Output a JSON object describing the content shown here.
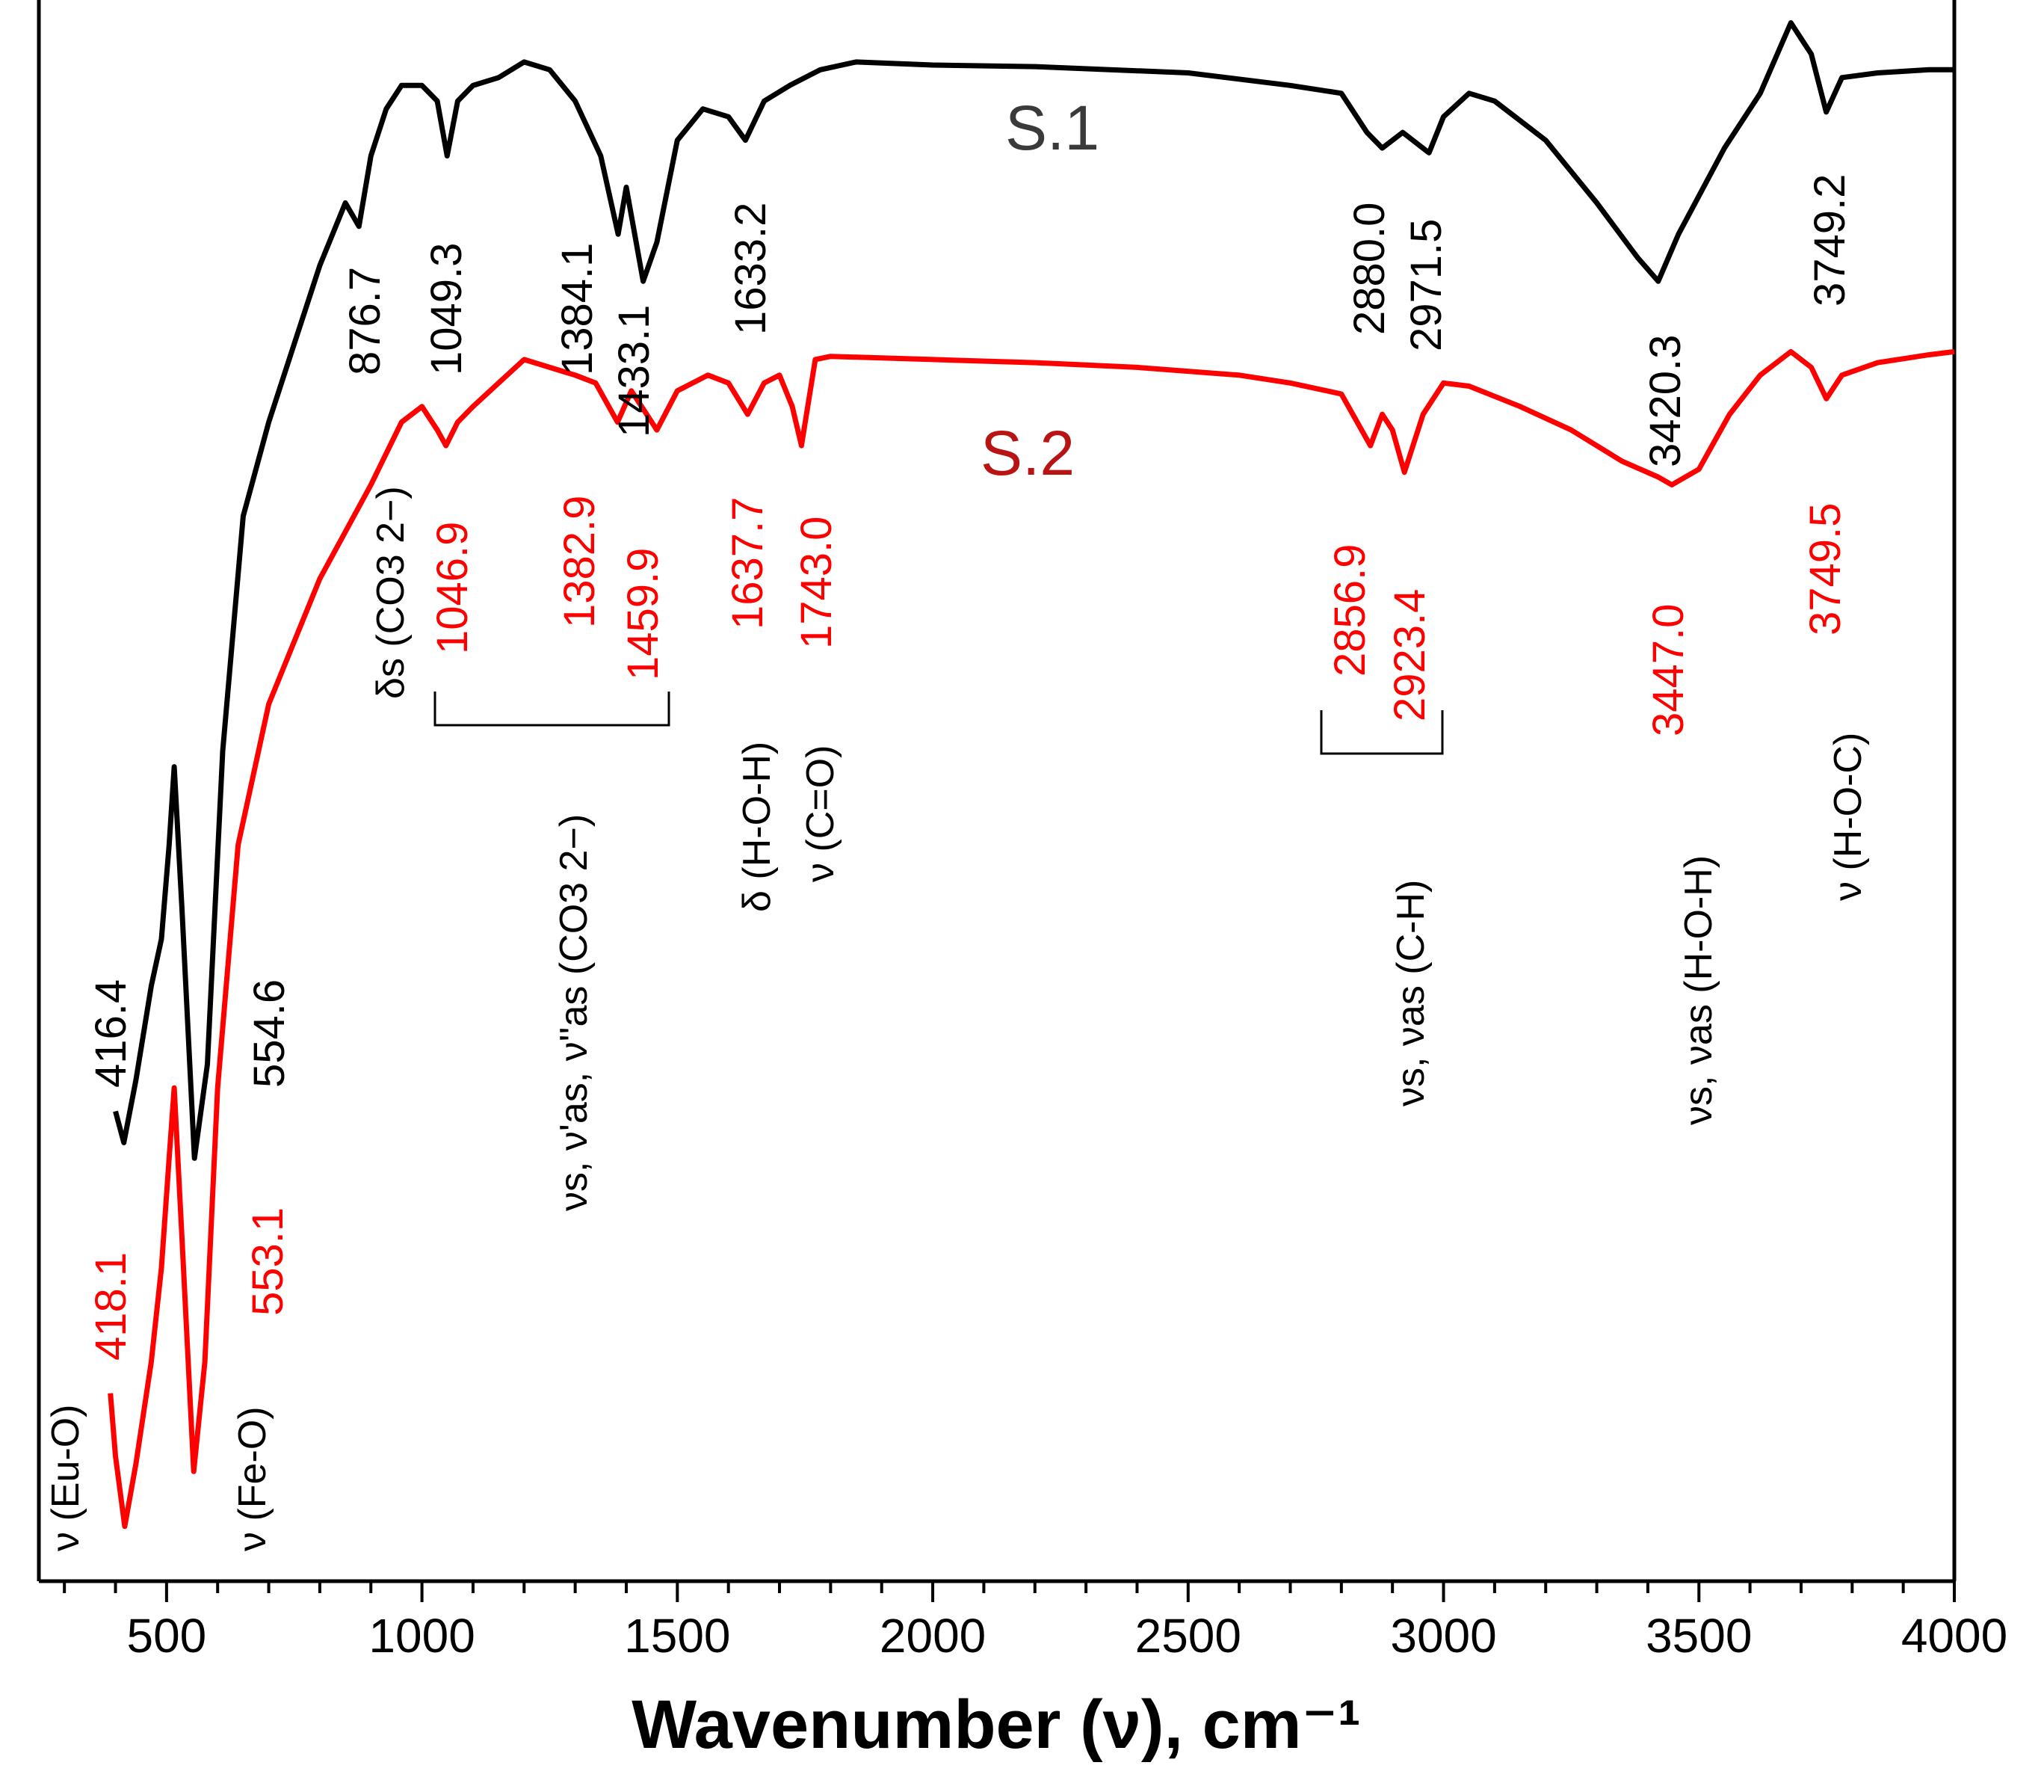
{
  "chart_data": {
    "type": "line",
    "title": "",
    "xlabel": "Wavenumber (ν), cm⁻¹",
    "ylabel": "",
    "xlim": [
      250,
      4000
    ],
    "ylim": [
      0,
      100
    ],
    "xticks": [
      500,
      1000,
      1500,
      2000,
      2500,
      3000,
      3500,
      4000
    ],
    "colors": {
      "s1": "#000000",
      "s2": "#ff0000",
      "axis": "#000000"
    },
    "series": [
      {
        "name": "S.1",
        "color": "#000000",
        "x": [
          400,
          416.4,
          440,
          470,
          490,
          505,
          515,
          530,
          554.6,
          580,
          610,
          650,
          700,
          750,
          800,
          850,
          876.7,
          900,
          930,
          960,
          1000,
          1030,
          1049.3,
          1070,
          1100,
          1150,
          1200,
          1250,
          1300,
          1350,
          1384.1,
          1400,
          1433.1,
          1460,
          1500,
          1550,
          1600,
          1633.2,
          1670,
          1720,
          1780,
          1850,
          2000,
          2200,
          2500,
          2700,
          2800,
          2850,
          2880.0,
          2920,
          2971.5,
          3000,
          3050,
          3100,
          3200,
          3300,
          3380,
          3420.3,
          3460,
          3550,
          3620,
          3680,
          3720,
          3749.2,
          3780,
          3850,
          3950,
          4000
        ],
        "y": [
          30.0,
          28.0,
          32.0,
          38.0,
          41.0,
          47.0,
          52.0,
          43.0,
          27.0,
          33.0,
          53.0,
          68.0,
          74.0,
          79.0,
          84.0,
          88.0,
          86.5,
          91.0,
          94.0,
          95.5,
          95.5,
          94.5,
          91.0,
          94.5,
          95.5,
          96.0,
          97.0,
          96.5,
          94.5,
          91.0,
          86.0,
          89.0,
          83.0,
          85.5,
          92.0,
          94.0,
          93.5,
          92.0,
          94.5,
          95.5,
          96.5,
          97.0,
          96.8,
          96.7,
          96.3,
          95.5,
          95.0,
          92.5,
          91.5,
          92.5,
          91.2,
          93.5,
          95.0,
          94.5,
          92.0,
          88.0,
          84.5,
          83.0,
          86.0,
          91.5,
          95.0,
          99.5,
          97.5,
          93.8,
          96.0,
          96.3,
          96.5,
          96.5
        ]
      },
      {
        "name": "S.2",
        "color": "#ff0000",
        "x": [
          390,
          400,
          418.1,
          440,
          470,
          490,
          505,
          515,
          530,
          553.1,
          575,
          600,
          640,
          700,
          800,
          900,
          960,
          1000,
          1030,
          1046.9,
          1070,
          1100,
          1150,
          1200,
          1250,
          1300,
          1340,
          1382.9,
          1410,
          1440,
          1459.9,
          1500,
          1560,
          1600,
          1637.7,
          1670,
          1700,
          1725,
          1743.0,
          1770,
          1800,
          2000,
          2200,
          2400,
          2600,
          2700,
          2800,
          2856.9,
          2880,
          2900,
          2923.4,
          2960,
          3000,
          3050,
          3150,
          3250,
          3350,
          3420,
          3447.0,
          3500,
          3560,
          3620,
          3680,
          3720,
          3749.5,
          3780,
          3850,
          3950,
          4000
        ],
        "y": [
          12.0,
          8.0,
          3.5,
          7.5,
          14.0,
          20.0,
          27.0,
          31.5,
          22.0,
          7.0,
          14.0,
          31.5,
          47.0,
          56.0,
          64.0,
          70.0,
          74.0,
          75.0,
          73.5,
          72.5,
          74.0,
          75.0,
          76.5,
          78.0,
          77.5,
          77.0,
          76.5,
          74.0,
          76.0,
          74.5,
          73.5,
          76.0,
          77.0,
          76.5,
          74.5,
          76.5,
          77.0,
          75.0,
          72.5,
          78.0,
          78.2,
          78.0,
          77.8,
          77.5,
          77.0,
          76.5,
          75.8,
          72.5,
          74.5,
          73.5,
          70.8,
          74.5,
          76.5,
          76.3,
          75.0,
          73.5,
          71.5,
          70.5,
          70.0,
          71.0,
          74.5,
          77.0,
          78.5,
          77.5,
          75.5,
          77.0,
          77.8,
          78.3,
          78.5
        ]
      }
    ],
    "legend": [
      {
        "label": "S.1",
        "color": "#000000"
      },
      {
        "label": "S.2",
        "color": "#b81414"
      }
    ],
    "peak_labels": [
      {
        "series": "S.1",
        "text": "416.4",
        "x": 416.4
      },
      {
        "series": "S.1",
        "text": "554.6",
        "x": 554.6
      },
      {
        "series": "S.1",
        "text": "876.7",
        "x": 876.7
      },
      {
        "series": "S.1",
        "text": "1049.3",
        "x": 1049.3
      },
      {
        "series": "S.1",
        "text": "1384.1",
        "x": 1384.1
      },
      {
        "series": "S.1",
        "text": "1433.1",
        "x": 1433.1
      },
      {
        "series": "S.1",
        "text": "1633.2",
        "x": 1633.2
      },
      {
        "series": "S.1",
        "text": "2880.0",
        "x": 2880.0
      },
      {
        "series": "S.1",
        "text": "2971.5",
        "x": 2971.5
      },
      {
        "series": "S.1",
        "text": "3420.3",
        "x": 3420.3
      },
      {
        "series": "S.1",
        "text": "3749.2",
        "x": 3749.2
      },
      {
        "series": "S.2",
        "text": "418.1",
        "x": 418.1
      },
      {
        "series": "S.2",
        "text": "553.1",
        "x": 553.1
      },
      {
        "series": "S.2",
        "text": "1046.9",
        "x": 1046.9
      },
      {
        "series": "S.2",
        "text": "1382.9",
        "x": 1382.9
      },
      {
        "series": "S.2",
        "text": "1459.9",
        "x": 1459.9
      },
      {
        "series": "S.2",
        "text": "1637.7",
        "x": 1637.7
      },
      {
        "series": "S.2",
        "text": "1743.0",
        "x": 1743.0
      },
      {
        "series": "S.2",
        "text": "2856.9",
        "x": 2856.9
      },
      {
        "series": "S.2",
        "text": "2923.4",
        "x": 2923.4
      },
      {
        "series": "S.2",
        "text": "3447.0",
        "x": 3447.0
      },
      {
        "series": "S.2",
        "text": "3749.5",
        "x": 3749.5
      }
    ],
    "assignments": [
      {
        "text": "ν (Eu-O)"
      },
      {
        "text": "ν (Fe-O)"
      },
      {
        "text": "δs (CO3 2−)"
      },
      {
        "text": "νs, ν'as, ν''as (CO3 2−)"
      },
      {
        "text": "δ (H-O-H)"
      },
      {
        "text": "ν (C=O)"
      },
      {
        "text": "νs, νas (C-H)"
      },
      {
        "text": "νs, νas (H-O-H)"
      },
      {
        "text": "ν (H-O-C)"
      }
    ]
  }
}
